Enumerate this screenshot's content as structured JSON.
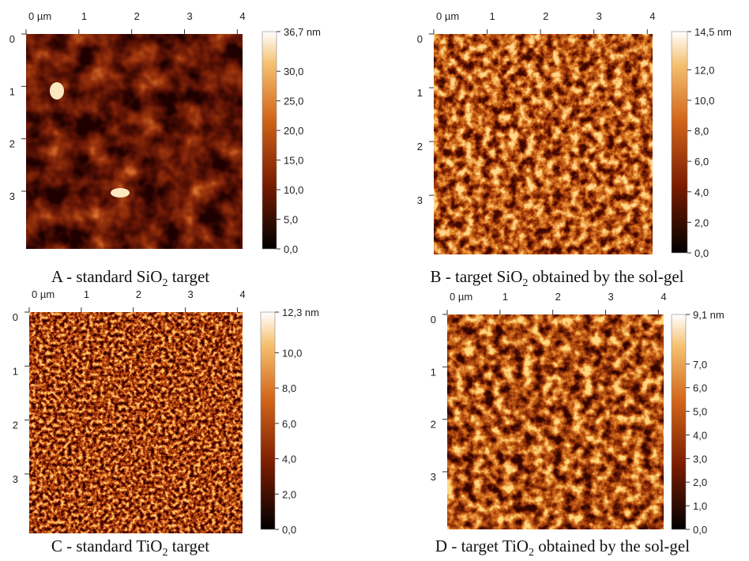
{
  "panels": [
    {
      "caption": {
        "before": "A - standard SiO",
        "sub": "2",
        "after": " target"
      },
      "x_ticks": [
        {
          "value": 0,
          "label": "0 µm"
        },
        1,
        2,
        3,
        4
      ],
      "y_ticks": [
        0,
        1,
        2,
        3
      ],
      "colorbar": [
        {
          "value": 36.7,
          "label": "36,7 nm"
        },
        {
          "value": 30,
          "label": "30,0"
        },
        {
          "value": 25,
          "label": "25,0"
        },
        {
          "value": 20,
          "label": "20,0"
        },
        {
          "value": 15,
          "label": "15,0"
        },
        {
          "value": 10,
          "label": "10,0"
        },
        {
          "value": 5,
          "label": "5,0"
        },
        {
          "value": 0,
          "label": "0,0"
        }
      ]
    },
    {
      "caption": {
        "before": "B - target SiO",
        "sub": "2",
        "after": " obtained by the sol-gel"
      },
      "x_ticks": [
        {
          "value": 0,
          "label": "0 µm"
        },
        1,
        2,
        3,
        4
      ],
      "y_ticks": [
        0,
        1,
        2,
        3
      ],
      "colorbar": [
        {
          "value": 14.5,
          "label": "14,5 nm"
        },
        {
          "value": 12,
          "label": "12,0"
        },
        {
          "value": 10,
          "label": "10,0"
        },
        {
          "value": 8,
          "label": "8,0"
        },
        {
          "value": 6,
          "label": "6,0"
        },
        {
          "value": 4,
          "label": "4,0"
        },
        {
          "value": 2,
          "label": "2,0"
        },
        {
          "value": 0,
          "label": "0,0"
        }
      ]
    },
    {
      "caption": {
        "before": "C - standard TiO",
        "sub": "2",
        "after": " target"
      },
      "x_ticks": [
        {
          "value": 0,
          "label": "0 µm"
        },
        1,
        2,
        3,
        4
      ],
      "y_ticks": [
        0,
        1,
        2,
        3
      ],
      "colorbar": [
        {
          "value": 12.3,
          "label": "12,3 nm"
        },
        {
          "value": 10,
          "label": "10,0"
        },
        {
          "value": 8,
          "label": "8,0"
        },
        {
          "value": 6,
          "label": "6,0"
        },
        {
          "value": 4,
          "label": "4,0"
        },
        {
          "value": 2,
          "label": "2,0"
        },
        {
          "value": 0,
          "label": "0,0"
        }
      ]
    },
    {
      "caption": {
        "before": "D - target TiO",
        "sub": "2",
        "after": " obtained by the sol-gel"
      },
      "x_ticks": [
        {
          "value": 0,
          "label": "0 µm"
        },
        1,
        2,
        3,
        4
      ],
      "y_ticks": [
        0,
        1,
        2,
        3
      ],
      "colorbar": [
        {
          "value": 9.1,
          "label": "9,1 nm"
        },
        {
          "value": 7,
          "label": "7,0"
        },
        {
          "value": 6,
          "label": "6,0"
        },
        {
          "value": 5,
          "label": "5,0"
        },
        {
          "value": 4,
          "label": "4,0"
        },
        {
          "value": 3,
          "label": "3,0"
        },
        {
          "value": 2,
          "label": "2,0"
        },
        {
          "value": 1,
          "label": "1,0"
        },
        {
          "value": 0,
          "label": "0,0"
        }
      ]
    }
  ]
}
